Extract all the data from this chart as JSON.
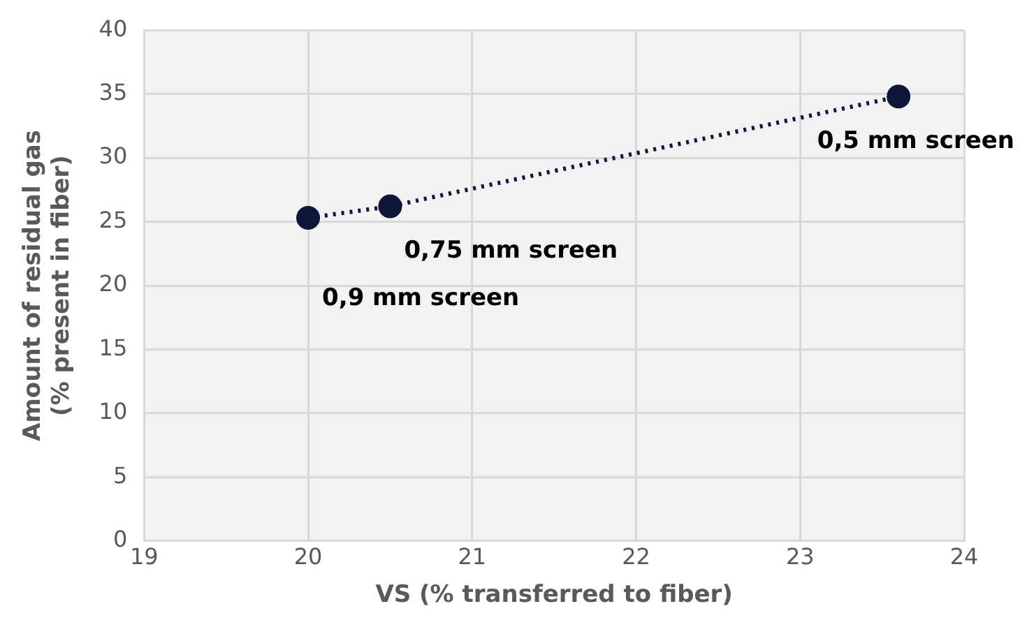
{
  "chart_data": {
    "type": "scatter",
    "xlabel": "VS (% transferred to fiber)",
    "ylabel": "Amount of residual gas\n(% present in fiber)",
    "x": [
      20,
      20.5,
      23.6
    ],
    "series": [
      {
        "type": "line",
        "color": "#0d1538",
        "values": [
          25.3,
          26.2,
          34.8
        ]
      }
    ],
    "xlim": [
      19,
      24
    ],
    "xticks": [
      19,
      20,
      21,
      22,
      23,
      24
    ],
    "ylim": [
      0,
      40
    ],
    "yticks": [
      0,
      5,
      10,
      15,
      20,
      25,
      30,
      35,
      40
    ],
    "grid": true,
    "legend": false,
    "marker": "circle",
    "line_style": "dotted",
    "annotations": [
      {
        "text": "0,9 mm screen",
        "x": 20,
        "y": 25.3
      },
      {
        "text": "0,75 mm screen",
        "x": 20.5,
        "y": 26.2
      },
      {
        "text": "0,5 mm screen",
        "x": 23.6,
        "y": 34.8
      }
    ]
  }
}
